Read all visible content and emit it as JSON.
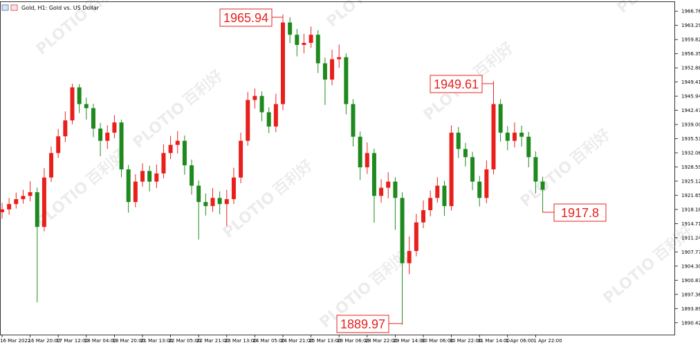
{
  "chart_data": {
    "type": "candlestick",
    "title": "Gold, H1: Gold vs. US Dollar",
    "watermark": [
      "PLOTIO",
      "百利好"
    ],
    "up_color": "#e8201c",
    "down_color": "#1e8a1e",
    "categories": [
      "16 Mar 2022",
      null,
      null,
      null,
      "16 Mar 20:00",
      null,
      null,
      null,
      "17 Mar 12:00",
      null,
      null,
      null,
      "18 Mar 04:00",
      null,
      null,
      null,
      "18 Mar 20:00",
      null,
      null,
      null,
      "21 Mar 13:00",
      null,
      null,
      null,
      "22 Mar 05:00",
      null,
      null,
      null,
      "22 Mar 21:00",
      null,
      null,
      null,
      "23 Mar 13:00",
      null,
      null,
      null,
      "24 Mar 05:00",
      null,
      null,
      null,
      "24 Mar 21:00",
      null,
      null,
      null,
      "25 Mar 13:00",
      null,
      null,
      null,
      "28 Mar 06:00",
      null,
      null,
      null,
      "28 Mar 22:00",
      null,
      null,
      null,
      "29 Mar 14:00",
      null,
      null,
      null,
      "30 Mar 06:00",
      null,
      null,
      null,
      "30 Mar 22:00",
      null,
      null,
      null,
      "31 Mar 14:00",
      null,
      null,
      null,
      "1 Apr 06:00",
      null,
      null,
      null,
      "1 Apr 22:00",
      null
    ],
    "open": [
      1917.5,
      1918.2,
      1919.5,
      1920.7,
      1921.5,
      1922.4,
      1913.9,
      1926.0,
      1932.0,
      1936.1,
      1940.0,
      1948.1,
      1944.0,
      1943.0,
      1938.0,
      1935.0,
      1937.0,
      1939.5,
      1928.0,
      1920.0,
      1925.0,
      1927.6,
      1925.0,
      1927.0,
      1932.0,
      1934.0,
      1935.0,
      1929.0,
      1924.0,
      1920.0,
      1919.0,
      1921.0,
      1919.5,
      1920.7,
      1926.0,
      1935.0,
      1945.0,
      1946.0,
      1942.0,
      1938.5,
      1944.0,
      1964.0,
      1961.0,
      1958.5,
      1959.0,
      1961.0,
      1954.0,
      1950.0,
      1955.0,
      1955.5,
      1944.0,
      1936.0,
      1928.5,
      1932.0,
      1921.5,
      1923.5,
      1925.0,
      1921.0,
      1905.0,
      1908.0,
      1915.0,
      1918.0,
      1921.0,
      1924.0,
      1919.0,
      1937.0,
      1933.0,
      1931.0,
      1925.0,
      1921.0,
      1928.0,
      1944.0,
      1937.0,
      1935.0,
      1937.0,
      1936.0,
      1931.0,
      1925.0
    ],
    "high": [
      1919.8,
      1921.0,
      1922.3,
      1923.0,
      1925.1,
      1923.5,
      1928.3,
      1933.6,
      1937.9,
      1942.2,
      1949.0,
      1948.9,
      1945.6,
      1944.1,
      1939.4,
      1938.8,
      1941.3,
      1940.2,
      1929.1,
      1926.8,
      1929.5,
      1928.9,
      1929.2,
      1934.1,
      1936.2,
      1937.4,
      1936.3,
      1930.4,
      1925.3,
      1922.1,
      1923.4,
      1922.6,
      1923.0,
      1928.4,
      1937.0,
      1947.0,
      1947.8,
      1947.1,
      1943.2,
      1946.5,
      1965.94,
      1965.3,
      1962.4,
      1961.2,
      1963.0,
      1962.1,
      1955.4,
      1957.3,
      1958.6,
      1956.4,
      1945.2,
      1937.3,
      1934.6,
      1933.1,
      1925.6,
      1927.3,
      1926.1,
      1922.4,
      1911.6,
      1917.1,
      1920.4,
      1922.8,
      1926.1,
      1925.2,
      1938.8,
      1938.4,
      1934.5,
      1932.3,
      1926.4,
      1930.2,
      1949.61,
      1945.2,
      1938.6,
      1939.5,
      1938.7,
      1937.2,
      1932.4,
      1926.2
    ],
    "low": [
      1915.9,
      1916.9,
      1918.4,
      1919.6,
      1920.2,
      1895.4,
      1912.8,
      1924.9,
      1930.8,
      1934.7,
      1939.1,
      1941.8,
      1940.2,
      1935.9,
      1931.2,
      1933.0,
      1935.6,
      1926.1,
      1917.4,
      1918.7,
      1923.8,
      1922.6,
      1923.4,
      1925.8,
      1930.5,
      1931.9,
      1926.7,
      1921.8,
      1910.8,
      1916.7,
      1917.6,
      1917.0,
      1914.1,
      1919.5,
      1924.6,
      1933.8,
      1942.9,
      1939.8,
      1936.9,
      1937.1,
      1942.5,
      1958.9,
      1955.7,
      1956.4,
      1957.8,
      1951.6,
      1943.8,
      1948.6,
      1952.9,
      1941.5,
      1933.6,
      1925.4,
      1926.9,
      1914.9,
      1919.8,
      1920.9,
      1913.2,
      1889.97,
      1902.3,
      1906.7,
      1913.6,
      1916.5,
      1919.8,
      1916.6,
      1917.9,
      1930.8,
      1928.7,
      1922.9,
      1918.9,
      1919.7,
      1926.8,
      1934.8,
      1932.7,
      1933.4,
      1933.6,
      1928.5,
      1922.1,
      1917.8
    ],
    "close": [
      1918.2,
      1919.5,
      1920.7,
      1921.5,
      1922.4,
      1913.9,
      1926.0,
      1932.0,
      1936.1,
      1940.0,
      1948.1,
      1944.0,
      1943.0,
      1938.0,
      1935.0,
      1937.0,
      1939.5,
      1928.0,
      1920.0,
      1925.0,
      1927.6,
      1925.0,
      1927.0,
      1932.0,
      1934.0,
      1935.0,
      1929.0,
      1924.0,
      1920.0,
      1919.0,
      1921.0,
      1919.5,
      1920.7,
      1926.0,
      1935.0,
      1945.0,
      1946.0,
      1942.0,
      1938.5,
      1944.0,
      1964.0,
      1961.0,
      1958.5,
      1959.0,
      1961.0,
      1954.0,
      1950.0,
      1955.0,
      1955.5,
      1944.0,
      1936.0,
      1928.5,
      1932.0,
      1921.5,
      1923.5,
      1925.0,
      1921.0,
      1905.0,
      1908.0,
      1915.0,
      1918.0,
      1921.0,
      1924.0,
      1919.0,
      1937.0,
      1933.0,
      1931.0,
      1925.0,
      1921.0,
      1928.0,
      1944.0,
      1937.0,
      1935.0,
      1937.0,
      1936.0,
      1931.0,
      1925.0,
      1923.0
    ],
    "ylim": [
      1887.5,
      1969.0
    ],
    "yticks": [
      1890.42,
      1893.89,
      1897.36,
      1900.83,
      {
        "value": 1904.3,
        "label": "1904.30"
      },
      1907.77,
      1911.24,
      1914.71,
      1918.18,
      1921.65,
      1925.12,
      1928.59,
      1932.06,
      1935.53,
      {
        "value": 1939,
        "label": "1939.00"
      },
      1942.47,
      1945.94,
      1949.41,
      1952.88,
      1956.35,
      1959.82,
      1963.29,
      1966.76
    ],
    "annotations": [
      {
        "value": 1965.94,
        "index": 40
      },
      {
        "value": 1949.61,
        "index": 70
      },
      {
        "value": 1889.97,
        "index": 57
      },
      {
        "value": 1917.8,
        "index": 77
      }
    ]
  }
}
